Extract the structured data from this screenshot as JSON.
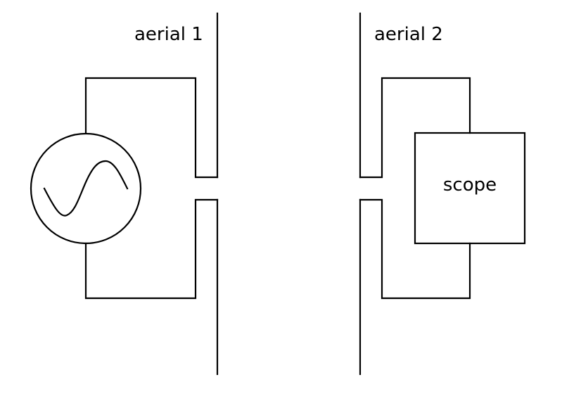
{
  "labels": {
    "aerial1": "aerial 1",
    "aerial2": "aerial 2",
    "scope": "scope"
  },
  "components": {
    "source_symbol": "ac-source-icon",
    "receiver": "oscilloscope"
  },
  "colors": {
    "line": "#000000",
    "background": "#ffffff"
  }
}
